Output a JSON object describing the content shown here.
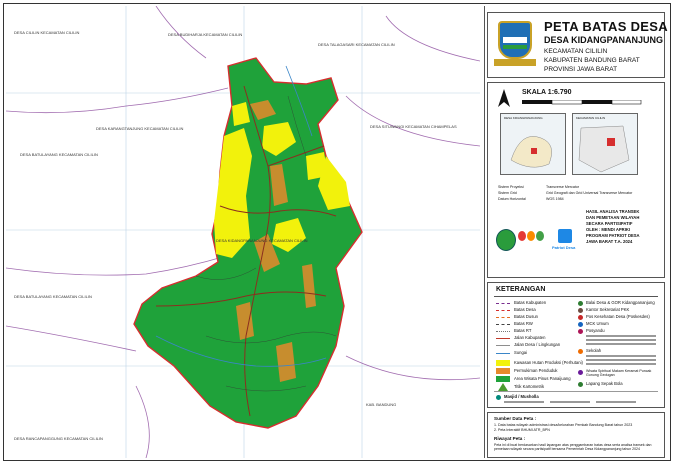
{
  "title": {
    "main": "PETA BATAS DESA",
    "village": "DESA KIDANGPANANJUNG",
    "kecamatan": "KECAMATAN CILILIN",
    "kabupaten": "KABUPATEN BANDUNG BARAT",
    "provinsi": "PROVINSI JAWA BARAT"
  },
  "scale": {
    "label": "SKALA 1:6.790"
  },
  "insets": {
    "left_label": "DESA KIDANGPANANJUNG",
    "right_label": "KECAMATAN CILILIN"
  },
  "projection": {
    "rows": [
      {
        "key": "Sistem Proyeksi",
        "value": "Transverse Mercator"
      },
      {
        "key": "Sistem Grid",
        "value": "Grid Geografi dan Grid Universal Transverse Mercator"
      },
      {
        "key": "Datum Horizontal",
        "value": "WGS 1984"
      }
    ]
  },
  "program": {
    "line1": "HASIL ANALISA TRANSEK",
    "line2": "DAN PEMETAAN WILAYAH",
    "line3": "SECARA PARTISIPATIF",
    "line4": "OLEH : MENDI APRIKI",
    "line5": "PROGRAM PATRIOT DESA",
    "line6": "JAWA BARAT T.A. 2024"
  },
  "logos": {
    "patriot": "Patriot Desa"
  },
  "legend": {
    "title": "KETERANGAN",
    "lines": [
      {
        "label": "Batas Kabupaten",
        "color": "#7a2f8f"
      },
      {
        "label": "Batas Desa",
        "color": "#d62e2e"
      },
      {
        "label": "Batas Dusun",
        "color": "#e56b1f"
      },
      {
        "label": "Batas RW",
        "color": "#444444"
      },
      {
        "label": "Batas RT",
        "color": "#777777"
      },
      {
        "label": "Jalan Kabupaten",
        "color": "#c0392b"
      },
      {
        "label": "Jalan Desa / Lingkungan",
        "color": "#8e8e8e"
      },
      {
        "label": "Sungai",
        "color": "#3a86c8"
      }
    ],
    "areas": [
      {
        "label": "Kawasan Hutan Produksi (Perhutani)",
        "color": "#f2f20c"
      },
      {
        "label": "Permukiman Penduduk",
        "color": "#e58a2c"
      },
      {
        "label": "Area Wisata Pinus Panaijuang",
        "color": "#1fa23a"
      },
      {
        "label": "Titik Kartometrik",
        "color": "#4a9c2f"
      }
    ],
    "points": [
      {
        "label": "Balai Desa & GOR Kidangpananjung",
        "color": "#2e7d32"
      },
      {
        "label": "Kantor Sekretariat PKK",
        "color": "#6d4c41"
      },
      {
        "label": "Pos Kesehatan Desa (Poskesdes)",
        "color": "#c62828"
      },
      {
        "label": "MCK Umum",
        "color": "#1565c0"
      },
      {
        "label": "Posyandu",
        "color": "#ad1457"
      },
      {
        "label": "Sekolah",
        "color": "#ef6c00"
      },
      {
        "label": "Wisata Spiritual Makam Keramat Puncak Gunung Gedugan",
        "color": "#6a1b9a"
      },
      {
        "label": "Lapang Sepak Bola",
        "color": "#2e7d32"
      }
    ],
    "mosque_title": "Masjid / Musholla"
  },
  "sources": {
    "title": "Sumber Data Peta :",
    "items": [
      "1. Data batas wilayah administrasi desa/kelurahan Pemkab Bandung Barat tahun 2023",
      "2. Peta Interaktif BHUMI ATR_BPN"
    ],
    "history_title": "Riwayat Peta :",
    "history": "Peta ini di buat berdasarkan hasil lapangan atas penggambaran batas desa serta analisa transek dan pemetaan wilayah secara partisipatif bersama Pemerintah Desa Kidangpananjung tahun 2024"
  },
  "map_labels": {
    "nw": "DESA CILILIN KECAMATAN CILILIN",
    "n1": "DESA BUDIHARJA KECAMATAN CILILIN",
    "n2": "DESA TALAGASARI KECAMATAN CILILIN",
    "w1": "DESA KARANGTANJUNG KECAMATAN CILILIN",
    "w2": "DESA BATULAYANG KECAMATAN CILILIN",
    "e1": "DESA SITUWANGI KECAMATAN CIHAMPELAS",
    "center": "DESA KIDANGPANANJUNG KECAMATAN CILILIN",
    "sw": "DESA BATULAYANG KECAMATAN CILILIN",
    "s1": "KAB. BANDUNG",
    "bl": "DESA RANCAPANGGUNG KECAMATAN CILILIN"
  },
  "colors": {
    "village": "#1fa23a",
    "forest": "#f2f20c",
    "settlement": "#e58a2c",
    "boundary": "#d62e2e",
    "district": "#7a2f8f"
  }
}
